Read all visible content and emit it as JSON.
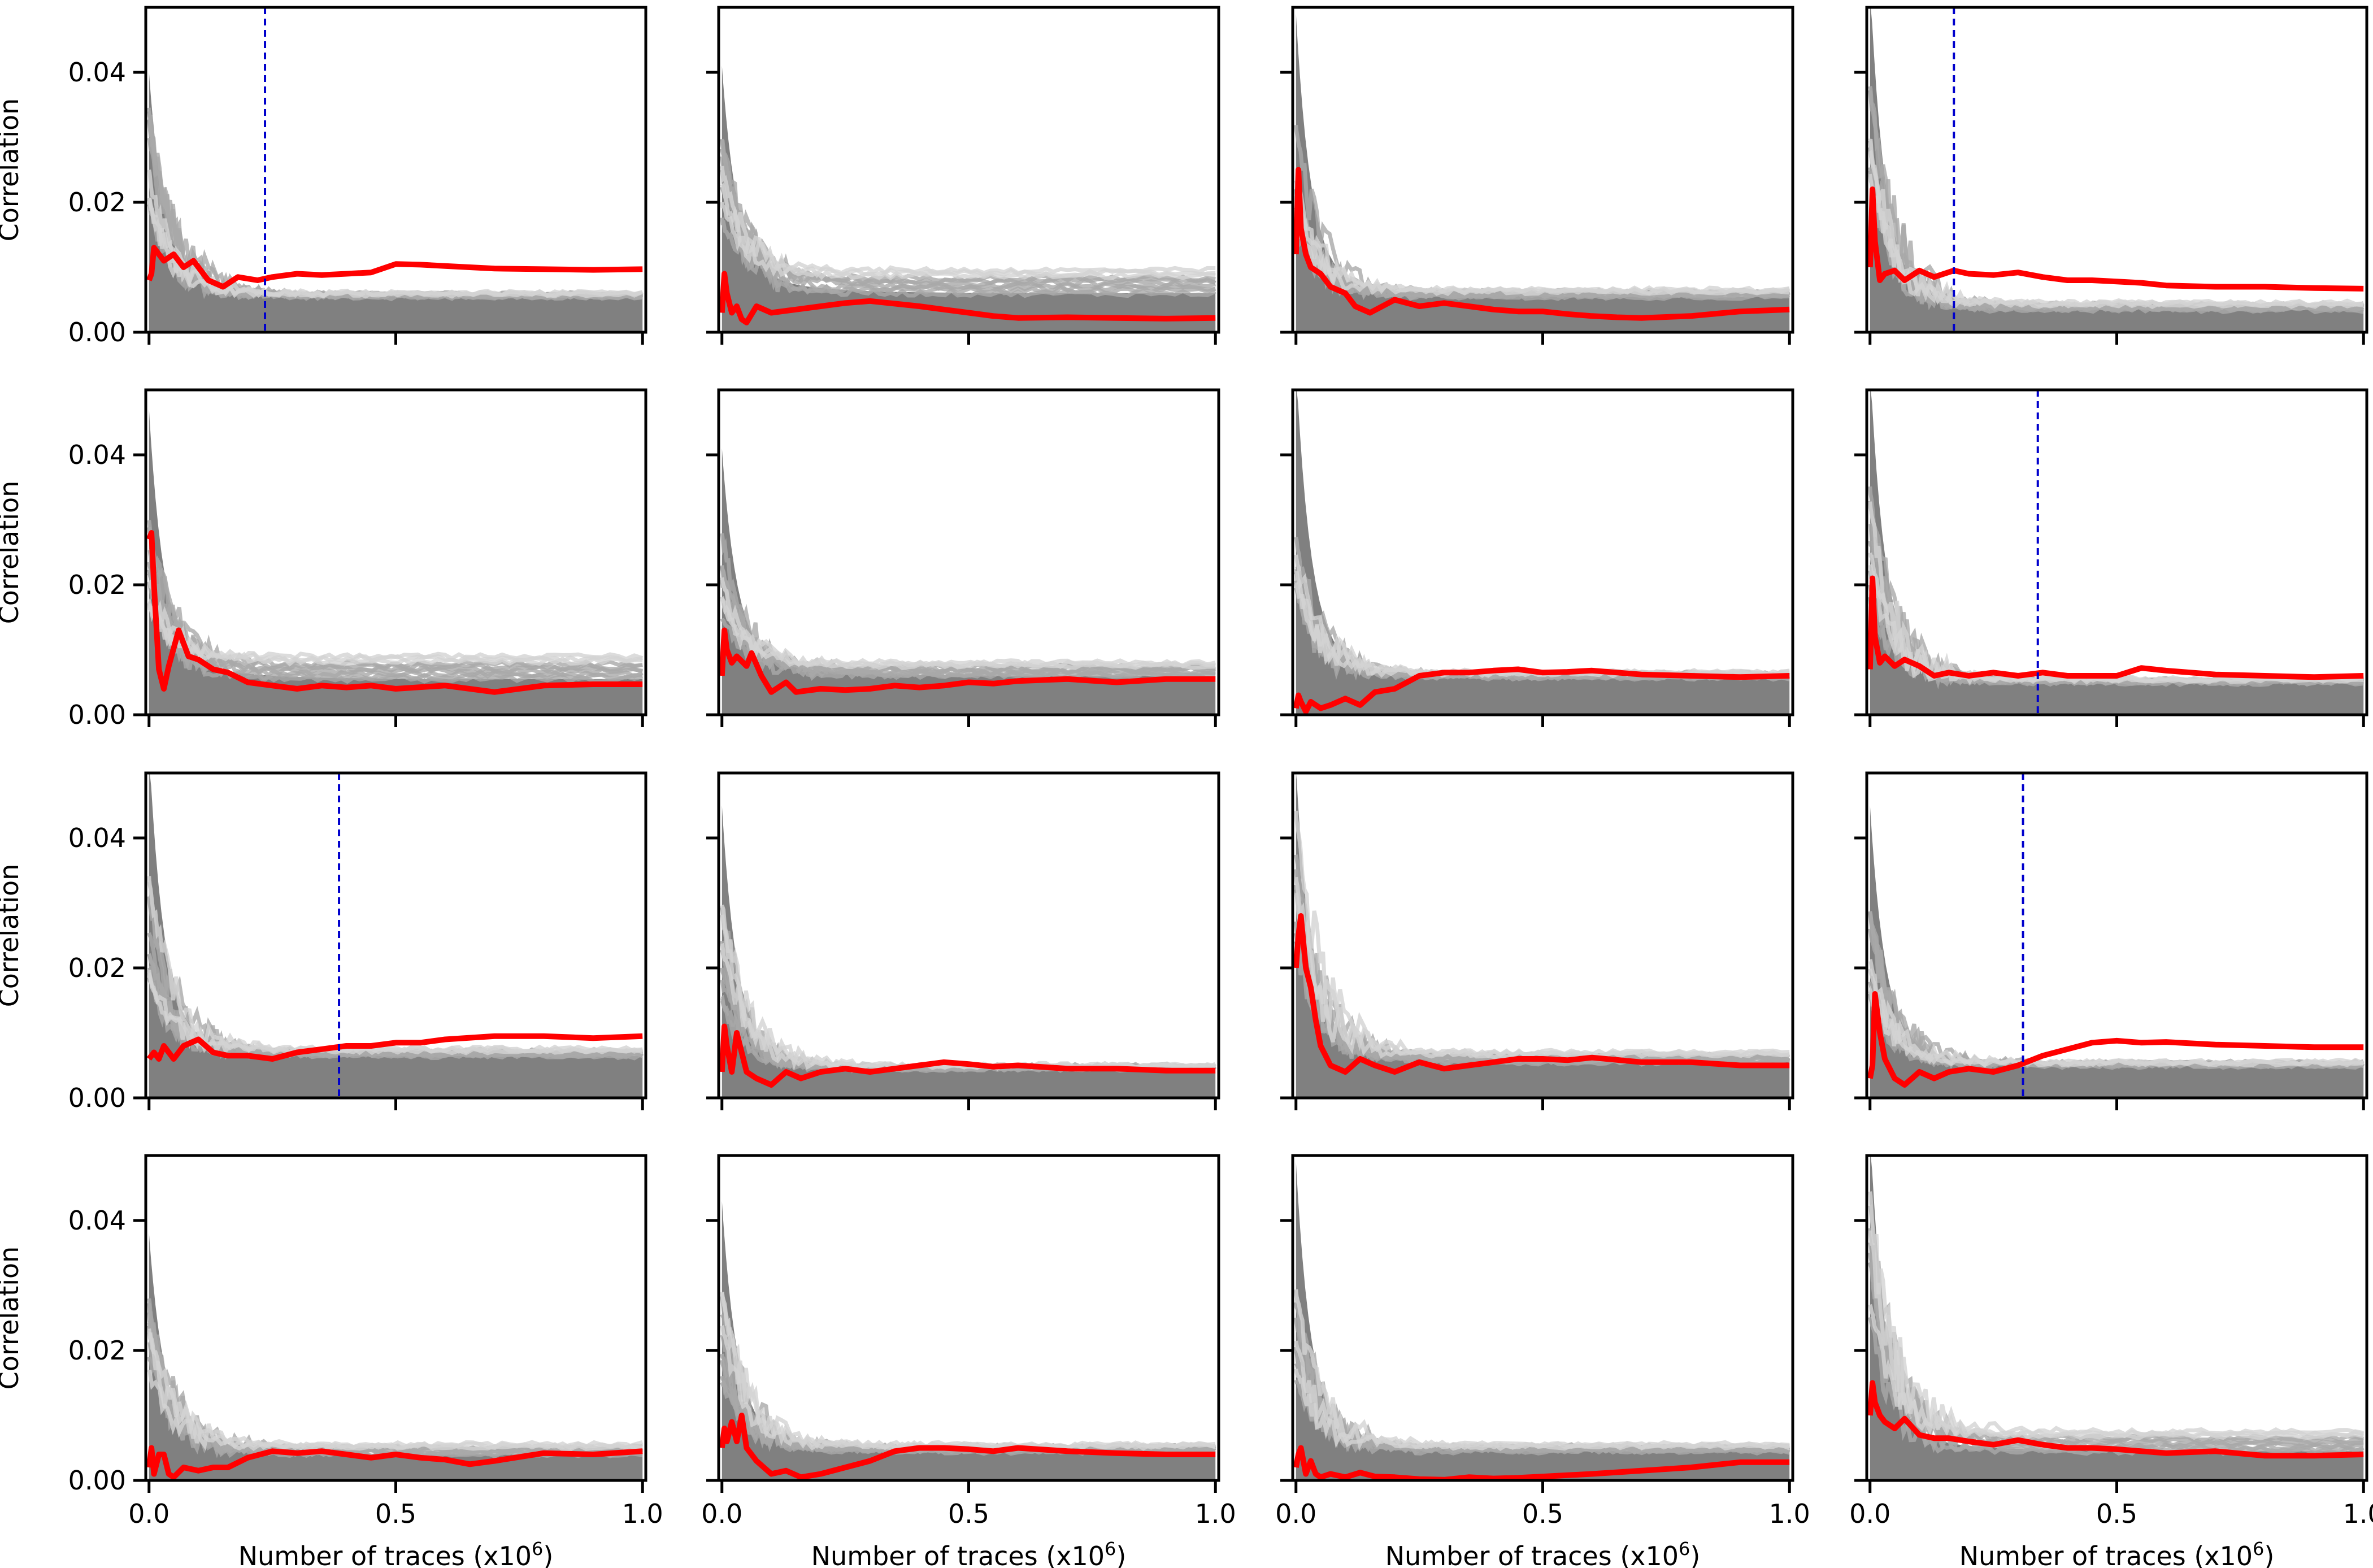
{
  "figure": {
    "rows": 4,
    "cols": 4,
    "shared_xlabel": "Number of traces (x10",
    "shared_xlabel_exponent": "6",
    "shared_xlabel_close": ")",
    "shared_ylabel": "Correlation"
  },
  "chart_data": {
    "type": "line",
    "layout": "4x4 small multiples",
    "xlabel": "Number of traces (x10^6)",
    "ylabel": "Correlation",
    "xlim": [
      0.0,
      1.0
    ],
    "ylim": [
      0.0,
      0.05
    ],
    "xticks": [
      0.0,
      0.5,
      1.0
    ],
    "xtick_labels": [
      "0.0",
      "0.5",
      "1.0"
    ],
    "yticks": [
      0.0,
      0.02,
      0.04
    ],
    "ytick_labels": [
      "0.00",
      "0.02",
      "0.04"
    ],
    "colors": {
      "background_traces": "#808080",
      "light_traces": "#d3d3d3",
      "correct_key": "#ff0000",
      "threshold_line": "#0000cc"
    },
    "panels": [
      {
        "row": 0,
        "col": 0,
        "peak": 0.036,
        "bg_end": 0.0055,
        "light_peak": 0.036,
        "light_end": 0.006,
        "threshold_x": 0.235,
        "red": {
          "x": [
            0,
            0.005,
            0.01,
            0.02,
            0.03,
            0.05,
            0.07,
            0.09,
            0.12,
            0.15,
            0.18,
            0.22,
            0.25,
            0.3,
            0.35,
            0.4,
            0.45,
            0.5,
            0.55,
            0.6,
            0.7,
            0.8,
            0.9,
            1.0
          ],
          "y": [
            0.008,
            0.009,
            0.013,
            0.012,
            0.011,
            0.012,
            0.01,
            0.011,
            0.008,
            0.007,
            0.0085,
            0.008,
            0.0085,
            0.009,
            0.0088,
            0.009,
            0.0092,
            0.0105,
            0.0104,
            0.0102,
            0.0098,
            0.0097,
            0.0096,
            0.0097
          ]
        }
      },
      {
        "row": 0,
        "col": 1,
        "peak": 0.037,
        "bg_end": 0.006,
        "light_peak": 0.03,
        "light_end": 0.0095,
        "threshold_x": null,
        "red": {
          "x": [
            0,
            0.005,
            0.01,
            0.02,
            0.03,
            0.04,
            0.05,
            0.07,
            0.1,
            0.15,
            0.2,
            0.25,
            0.3,
            0.35,
            0.4,
            0.45,
            0.5,
            0.55,
            0.6,
            0.7,
            0.8,
            0.9,
            1.0
          ],
          "y": [
            0.003,
            0.009,
            0.006,
            0.003,
            0.004,
            0.002,
            0.0015,
            0.004,
            0.003,
            0.0035,
            0.004,
            0.0045,
            0.0048,
            0.0044,
            0.004,
            0.0035,
            0.003,
            0.0025,
            0.0022,
            0.0023,
            0.0022,
            0.0021,
            0.0022
          ]
        }
      },
      {
        "row": 0,
        "col": 2,
        "peak": 0.045,
        "bg_end": 0.0055,
        "light_peak": 0.032,
        "light_end": 0.0065,
        "threshold_x": null,
        "red": {
          "x": [
            0,
            0.005,
            0.01,
            0.02,
            0.03,
            0.05,
            0.07,
            0.1,
            0.12,
            0.15,
            0.2,
            0.25,
            0.3,
            0.35,
            0.4,
            0.45,
            0.5,
            0.55,
            0.6,
            0.65,
            0.7,
            0.8,
            0.9,
            1.0
          ],
          "y": [
            0.012,
            0.025,
            0.016,
            0.012,
            0.01,
            0.009,
            0.007,
            0.006,
            0.004,
            0.003,
            0.005,
            0.004,
            0.0045,
            0.004,
            0.0035,
            0.0032,
            0.0032,
            0.0028,
            0.0025,
            0.0023,
            0.0022,
            0.0025,
            0.0032,
            0.0035
          ]
        }
      },
      {
        "row": 0,
        "col": 3,
        "peak": 0.05,
        "bg_end": 0.0035,
        "light_peak": 0.04,
        "light_end": 0.0045,
        "threshold_x": 0.17,
        "red": {
          "x": [
            0,
            0.005,
            0.01,
            0.02,
            0.03,
            0.05,
            0.07,
            0.1,
            0.13,
            0.17,
            0.2,
            0.25,
            0.3,
            0.35,
            0.4,
            0.45,
            0.5,
            0.55,
            0.6,
            0.7,
            0.8,
            0.9,
            1.0
          ],
          "y": [
            0.01,
            0.022,
            0.014,
            0.008,
            0.009,
            0.0095,
            0.008,
            0.0095,
            0.0085,
            0.0095,
            0.009,
            0.0088,
            0.0092,
            0.0085,
            0.008,
            0.008,
            0.0078,
            0.0076,
            0.0072,
            0.007,
            0.007,
            0.0068,
            0.0067
          ]
        }
      },
      {
        "row": 1,
        "col": 0,
        "peak": 0.043,
        "bg_end": 0.0055,
        "light_peak": 0.03,
        "light_end": 0.009,
        "threshold_x": null,
        "red": {
          "x": [
            0,
            0.005,
            0.01,
            0.02,
            0.03,
            0.04,
            0.06,
            0.08,
            0.1,
            0.13,
            0.16,
            0.2,
            0.25,
            0.3,
            0.35,
            0.4,
            0.45,
            0.5,
            0.6,
            0.7,
            0.8,
            0.9,
            1.0
          ],
          "y": [
            0.027,
            0.028,
            0.02,
            0.007,
            0.004,
            0.0075,
            0.013,
            0.009,
            0.0085,
            0.007,
            0.0065,
            0.005,
            0.0045,
            0.004,
            0.0045,
            0.0042,
            0.0045,
            0.004,
            0.0045,
            0.0035,
            0.0045,
            0.0047,
            0.0047
          ]
        }
      },
      {
        "row": 1,
        "col": 1,
        "peak": 0.037,
        "bg_end": 0.006,
        "light_peak": 0.03,
        "light_end": 0.008,
        "threshold_x": null,
        "red": {
          "x": [
            0,
            0.005,
            0.01,
            0.02,
            0.03,
            0.05,
            0.06,
            0.08,
            0.1,
            0.13,
            0.15,
            0.2,
            0.25,
            0.3,
            0.35,
            0.4,
            0.45,
            0.5,
            0.55,
            0.6,
            0.7,
            0.8,
            0.9,
            1.0
          ],
          "y": [
            0.006,
            0.013,
            0.01,
            0.008,
            0.009,
            0.0075,
            0.0095,
            0.006,
            0.0035,
            0.005,
            0.0035,
            0.004,
            0.0038,
            0.004,
            0.0045,
            0.0042,
            0.0045,
            0.005,
            0.0048,
            0.0052,
            0.0055,
            0.005,
            0.0055,
            0.0055
          ]
        }
      },
      {
        "row": 1,
        "col": 2,
        "peak": 0.05,
        "bg_end": 0.0058,
        "light_peak": 0.03,
        "light_end": 0.0065,
        "threshold_x": null,
        "red": {
          "x": [
            0,
            0.005,
            0.01,
            0.02,
            0.03,
            0.05,
            0.07,
            0.1,
            0.13,
            0.16,
            0.2,
            0.25,
            0.3,
            0.35,
            0.4,
            0.45,
            0.5,
            0.55,
            0.6,
            0.7,
            0.8,
            0.9,
            1.0
          ],
          "y": [
            0.001,
            0.003,
            0.002,
            0.0005,
            0.002,
            0.001,
            0.0015,
            0.0025,
            0.0015,
            0.0035,
            0.004,
            0.006,
            0.0065,
            0.0065,
            0.0068,
            0.007,
            0.0065,
            0.0066,
            0.0068,
            0.0062,
            0.006,
            0.0058,
            0.006
          ]
        }
      },
      {
        "row": 1,
        "col": 3,
        "peak": 0.05,
        "bg_end": 0.005,
        "light_peak": 0.035,
        "light_end": 0.0055,
        "threshold_x": 0.34,
        "red": {
          "x": [
            0,
            0.005,
            0.01,
            0.02,
            0.03,
            0.05,
            0.07,
            0.1,
            0.13,
            0.16,
            0.2,
            0.25,
            0.3,
            0.35,
            0.4,
            0.45,
            0.5,
            0.55,
            0.6,
            0.7,
            0.8,
            0.9,
            1.0
          ],
          "y": [
            0.007,
            0.021,
            0.012,
            0.008,
            0.009,
            0.0075,
            0.0085,
            0.0075,
            0.006,
            0.0065,
            0.006,
            0.0065,
            0.006,
            0.0065,
            0.006,
            0.006,
            0.006,
            0.0072,
            0.0068,
            0.0062,
            0.006,
            0.0058,
            0.006
          ]
        }
      },
      {
        "row": 2,
        "col": 0,
        "peak": 0.05,
        "bg_end": 0.0065,
        "light_peak": 0.035,
        "light_end": 0.0075,
        "threshold_x": 0.385,
        "red": {
          "x": [
            0,
            0.01,
            0.02,
            0.03,
            0.05,
            0.07,
            0.1,
            0.13,
            0.16,
            0.2,
            0.25,
            0.3,
            0.35,
            0.4,
            0.45,
            0.5,
            0.55,
            0.6,
            0.7,
            0.8,
            0.9,
            1.0
          ],
          "y": [
            0.006,
            0.007,
            0.006,
            0.008,
            0.006,
            0.008,
            0.009,
            0.007,
            0.0065,
            0.0065,
            0.006,
            0.007,
            0.0075,
            0.008,
            0.008,
            0.0085,
            0.0085,
            0.009,
            0.0095,
            0.0095,
            0.0092,
            0.0095
          ]
        }
      },
      {
        "row": 2,
        "col": 1,
        "peak": 0.041,
        "bg_end": 0.0045,
        "light_peak": 0.03,
        "light_end": 0.005,
        "threshold_x": null,
        "red": {
          "x": [
            0,
            0.005,
            0.01,
            0.02,
            0.03,
            0.05,
            0.07,
            0.1,
            0.13,
            0.16,
            0.2,
            0.25,
            0.3,
            0.35,
            0.4,
            0.45,
            0.5,
            0.55,
            0.6,
            0.7,
            0.8,
            0.9,
            1.0
          ],
          "y": [
            0.004,
            0.011,
            0.008,
            0.004,
            0.01,
            0.004,
            0.003,
            0.002,
            0.004,
            0.003,
            0.004,
            0.0045,
            0.004,
            0.0045,
            0.005,
            0.0055,
            0.0052,
            0.0048,
            0.005,
            0.0045,
            0.0045,
            0.0042,
            0.0042
          ]
        }
      },
      {
        "row": 2,
        "col": 2,
        "peak": 0.047,
        "bg_end": 0.0055,
        "light_peak": 0.047,
        "light_end": 0.007,
        "threshold_x": null,
        "red": {
          "x": [
            0,
            0.005,
            0.01,
            0.02,
            0.03,
            0.04,
            0.05,
            0.07,
            0.1,
            0.13,
            0.16,
            0.2,
            0.25,
            0.3,
            0.35,
            0.4,
            0.45,
            0.5,
            0.55,
            0.6,
            0.7,
            0.8,
            0.9,
            1.0
          ],
          "y": [
            0.02,
            0.025,
            0.028,
            0.02,
            0.017,
            0.012,
            0.008,
            0.005,
            0.004,
            0.006,
            0.005,
            0.004,
            0.0055,
            0.0045,
            0.005,
            0.0055,
            0.006,
            0.006,
            0.0058,
            0.0062,
            0.0055,
            0.0055,
            0.005,
            0.005
          ]
        }
      },
      {
        "row": 2,
        "col": 3,
        "peak": 0.041,
        "bg_end": 0.005,
        "light_peak": 0.03,
        "light_end": 0.0055,
        "threshold_x": 0.31,
        "red": {
          "x": [
            0,
            0.005,
            0.01,
            0.02,
            0.03,
            0.05,
            0.07,
            0.1,
            0.13,
            0.16,
            0.2,
            0.25,
            0.3,
            0.35,
            0.4,
            0.45,
            0.5,
            0.55,
            0.6,
            0.7,
            0.8,
            0.9,
            1.0
          ],
          "y": [
            0.003,
            0.005,
            0.016,
            0.01,
            0.006,
            0.003,
            0.002,
            0.004,
            0.003,
            0.004,
            0.0045,
            0.004,
            0.005,
            0.0065,
            0.0075,
            0.0085,
            0.0088,
            0.0085,
            0.0086,
            0.0082,
            0.008,
            0.0078,
            0.0078
          ]
        }
      },
      {
        "row": 3,
        "col": 0,
        "peak": 0.034,
        "bg_end": 0.004,
        "light_peak": 0.03,
        "light_end": 0.0055,
        "threshold_x": null,
        "red": {
          "x": [
            0,
            0.005,
            0.01,
            0.02,
            0.03,
            0.04,
            0.05,
            0.07,
            0.1,
            0.13,
            0.16,
            0.2,
            0.25,
            0.3,
            0.35,
            0.4,
            0.45,
            0.5,
            0.55,
            0.6,
            0.65,
            0.7,
            0.8,
            0.9,
            1.0
          ],
          "y": [
            0.002,
            0.005,
            0.001,
            0.004,
            0.004,
            0.001,
            0.0005,
            0.002,
            0.0015,
            0.002,
            0.002,
            0.0035,
            0.0045,
            0.0042,
            0.0045,
            0.004,
            0.0035,
            0.004,
            0.0035,
            0.0032,
            0.0025,
            0.003,
            0.0042,
            0.004,
            0.0045
          ]
        }
      },
      {
        "row": 3,
        "col": 1,
        "peak": 0.039,
        "bg_end": 0.0045,
        "light_peak": 0.03,
        "light_end": 0.0055,
        "threshold_x": null,
        "red": {
          "x": [
            0,
            0.005,
            0.01,
            0.02,
            0.03,
            0.04,
            0.05,
            0.07,
            0.1,
            0.13,
            0.16,
            0.2,
            0.25,
            0.3,
            0.35,
            0.4,
            0.45,
            0.5,
            0.55,
            0.6,
            0.7,
            0.8,
            0.9,
            1.0
          ],
          "y": [
            0.005,
            0.008,
            0.006,
            0.009,
            0.006,
            0.01,
            0.005,
            0.003,
            0.001,
            0.0015,
            0.0005,
            0.001,
            0.002,
            0.003,
            0.0045,
            0.005,
            0.005,
            0.0048,
            0.0045,
            0.005,
            0.0045,
            0.0042,
            0.004,
            0.004
          ]
        }
      },
      {
        "row": 3,
        "col": 2,
        "peak": 0.045,
        "bg_end": 0.0045,
        "light_peak": 0.03,
        "light_end": 0.0055,
        "threshold_x": null,
        "red": {
          "x": [
            0,
            0.005,
            0.01,
            0.02,
            0.03,
            0.04,
            0.05,
            0.07,
            0.1,
            0.13,
            0.16,
            0.2,
            0.25,
            0.3,
            0.35,
            0.4,
            0.45,
            0.5,
            0.55,
            0.6,
            0.7,
            0.8,
            0.9,
            1.0
          ],
          "y": [
            0.002,
            0.004,
            0.005,
            0.001,
            0.003,
            0.001,
            0.0005,
            0.001,
            0.0005,
            0.0012,
            0.0006,
            0.0005,
            0.0002,
            0.0001,
            0.0005,
            0.0003,
            0.0004,
            0.0006,
            0.0008,
            0.001,
            0.0015,
            0.002,
            0.0028,
            0.0028
          ]
        }
      },
      {
        "row": 3,
        "col": 3,
        "peak": 0.05,
        "bg_end": 0.0045,
        "light_peak": 0.05,
        "light_end": 0.0075,
        "threshold_x": null,
        "red": {
          "x": [
            0,
            0.005,
            0.01,
            0.02,
            0.03,
            0.05,
            0.07,
            0.1,
            0.13,
            0.16,
            0.2,
            0.25,
            0.3,
            0.35,
            0.4,
            0.45,
            0.5,
            0.55,
            0.6,
            0.7,
            0.8,
            0.9,
            1.0
          ],
          "y": [
            0.01,
            0.015,
            0.012,
            0.01,
            0.009,
            0.008,
            0.0095,
            0.007,
            0.0065,
            0.0065,
            0.006,
            0.0055,
            0.0062,
            0.0055,
            0.005,
            0.005,
            0.0048,
            0.0045,
            0.0042,
            0.0045,
            0.0038,
            0.0038,
            0.004
          ]
        }
      }
    ]
  }
}
